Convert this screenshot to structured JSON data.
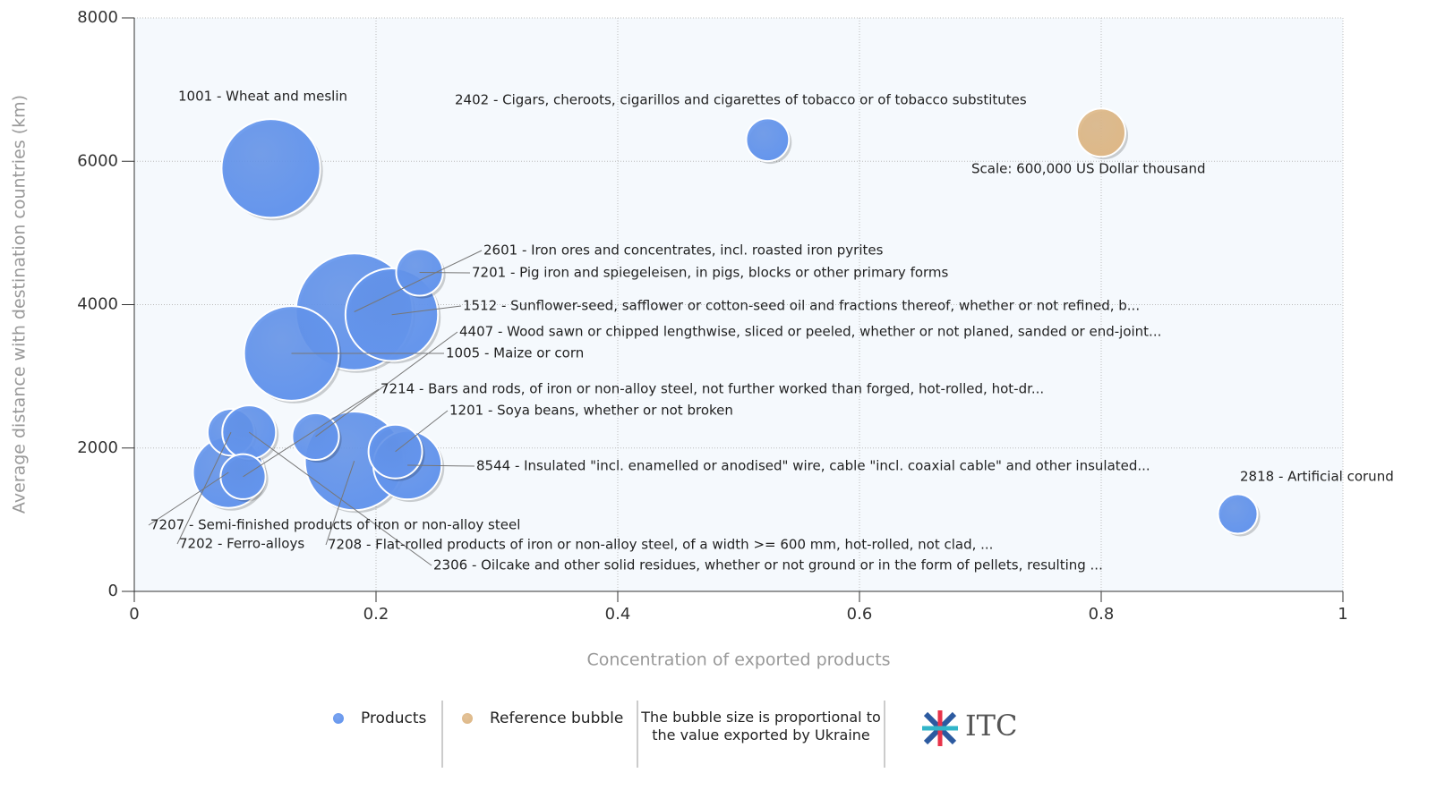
{
  "chart_data": {
    "type": "bubble",
    "xlabel": "Concentration of exported products",
    "ylabel": "Average distance with destination countries (km)",
    "xlim": [
      0,
      1
    ],
    "ylim": [
      0,
      8000
    ],
    "xticks": [
      0,
      0.2,
      0.4,
      0.6,
      0.8,
      1
    ],
    "yticks": [
      0,
      2000,
      4000,
      6000,
      8000
    ],
    "grid": true,
    "series": [
      {
        "name": "Products",
        "color": "#6495ed",
        "labels": [
          "2601 - Iron ores and concentrates, incl. roasted iron pyrites",
          "1001 - Wheat and meslin",
          "7208 - Flat-rolled products of iron or non-alloy steel, of a width >= 600 mm, hot-rolled, not clad, ...",
          "1005 - Maize or corn",
          "1512 - Sunflower-seed, safflower or cotton-seed oil and fractions thereof, whether or not refined, b...",
          "7207 - Semi-finished products of iron or non-alloy steel",
          "8544 - Insulated \"incl. enamelled or anodised\" wire, cable \"incl. coaxial cable\" and other insulated...",
          "7202 - Ferro-alloys",
          "2306 - Oilcake and other solid residues, whether or not ground or in the form of pellets, resulting ...",
          "1201 - Soya beans, whether or not broken",
          "4407 - Wood sawn or chipped lengthwise, sliced or peeled, whether or not planed, sanded or end-joint...",
          "7214 - Bars and rods, of iron or non-alloy steel, not further worked than forged, hot-rolled, hot-dr...",
          "7201 - Pig iron and spiegeleisen, in pigs, blocks or other primary forms",
          "2402 - Cigars, cheroots, cigarillos and cigarettes of tobacco or of tobacco substitutes",
          "2818 - Artificial corund"
        ],
        "x": [
          0.182,
          0.113,
          0.182,
          0.13,
          0.213,
          0.078,
          0.226,
          0.08,
          0.095,
          0.216,
          0.15,
          0.09,
          0.236,
          0.524,
          0.913
        ],
        "values": [
          3900,
          5900,
          1820,
          3320,
          3860,
          1660,
          1760,
          2220,
          2220,
          1950,
          2160,
          1600,
          4450,
          6300,
          1080
        ],
        "sizes": [
          3500000,
          2500000,
          2500000,
          2300000,
          2200000,
          1300000,
          1200000,
          560000,
          740000,
          740000,
          560000,
          520000,
          560000,
          470000,
          400000
        ]
      },
      {
        "name": "Reference bubble",
        "color": "#deb887",
        "labels": [
          "Scale: 600,000 US Dollar thousand"
        ],
        "x": [
          0.8
        ],
        "values": [
          6400
        ],
        "sizes": [
          600000
        ]
      }
    ],
    "note": "The bubble size is proportional to the value exported by Ukraine",
    "logo": "ITC"
  }
}
